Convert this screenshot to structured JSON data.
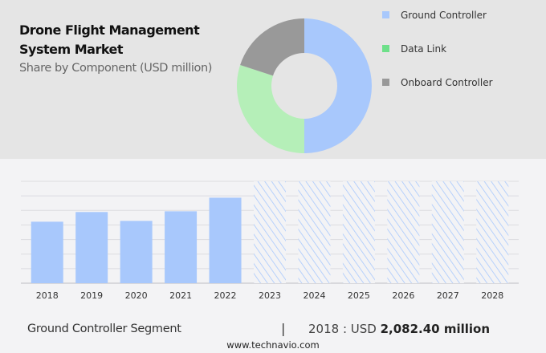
{
  "header": {
    "title_line1": "Drone Flight Management",
    "title_line2": "System Market",
    "subtitle": "Share by Component (USD million)"
  },
  "chart_data": [
    {
      "type": "pie",
      "donut": true,
      "title": "Drone Flight Management System Market",
      "subtitle": "Share by Component (USD million)",
      "legend_position": "right",
      "slices": [
        {
          "name": "Ground Controller",
          "value": 50,
          "color": "#a8c8fc"
        },
        {
          "name": "Data Link",
          "value": 30,
          "color": "#b5efb8"
        },
        {
          "name": "Onboard Controller",
          "value": 20,
          "color": "#999999"
        }
      ],
      "legend_colors": [
        "#a8c8fc",
        "#6ee08a",
        "#999999"
      ]
    },
    {
      "type": "bar",
      "series_name": "Ground Controller Segment",
      "categories": [
        "2018",
        "2019",
        "2020",
        "2021",
        "2022",
        "2023",
        "2024",
        "2025",
        "2026",
        "2027",
        "2028"
      ],
      "values": [
        2082.4,
        2410,
        2110,
        2435,
        2895,
        null,
        null,
        null,
        null,
        null,
        null
      ],
      "forecast_hatched": [
        "2023",
        "2024",
        "2025",
        "2026",
        "2027",
        "2028"
      ],
      "ylim": [
        0,
        3450
      ],
      "grid": true,
      "bar_color": "#a8c8fc"
    }
  ],
  "footer": {
    "segment": "Ground Controller Segment",
    "separator": "|",
    "year_label": "2018 : USD ",
    "value": "2,082.40 million",
    "url": "www.technavio.com"
  }
}
